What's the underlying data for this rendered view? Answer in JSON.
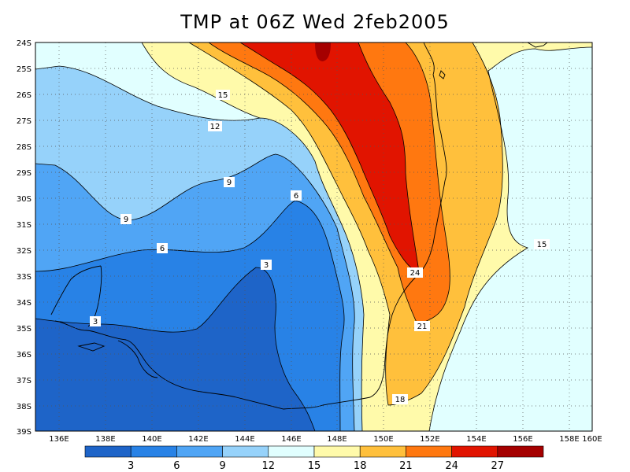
{
  "title": "TMP at 06Z Wed 2feb2005",
  "lat_labels": [
    "24S",
    "25S",
    "26S",
    "27S",
    "28S",
    "29S",
    "30S",
    "31S",
    "32S",
    "33S",
    "34S",
    "35S",
    "36S",
    "37S",
    "38S",
    "39S"
  ],
  "lon_labels": [
    "136E",
    "138E",
    "140E",
    "142E",
    "144E",
    "146E",
    "148E",
    "150E",
    "152E",
    "154E",
    "156E",
    "158E",
    "160E"
  ],
  "colorbar": {
    "colors": [
      "#1e64c8",
      "#2882e6",
      "#50a5f5",
      "#96d2fa",
      "#e1ffff",
      "#fffaaa",
      "#ffc03c",
      "#ff7810",
      "#e11400",
      "#a50000"
    ],
    "ticks": [
      "3",
      "6",
      "9",
      "12",
      "15",
      "18",
      "21",
      "24",
      "27"
    ]
  },
  "contour_labels": [
    {
      "text": "15"
    },
    {
      "text": "12"
    },
    {
      "text": "9"
    },
    {
      "text": "9"
    },
    {
      "text": "6"
    },
    {
      "text": "6"
    },
    {
      "text": "3"
    },
    {
      "text": "3"
    },
    {
      "text": "24"
    },
    {
      "text": "21"
    },
    {
      "text": "18"
    },
    {
      "text": "15"
    }
  ]
}
